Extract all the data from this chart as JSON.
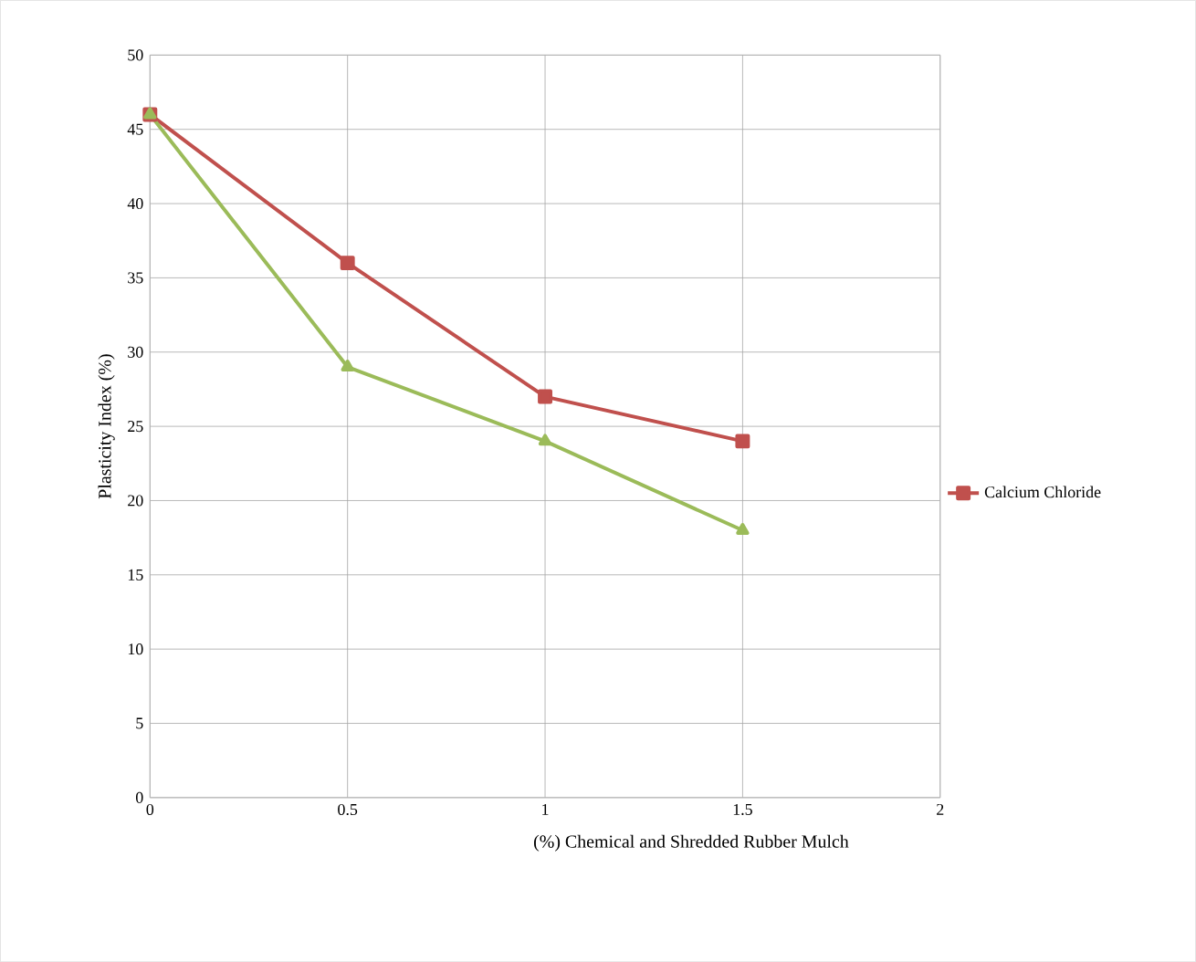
{
  "chart_data": {
    "type": "line",
    "xlabel": "(%) Chemical and Shredded Rubber Mulch",
    "ylabel": "Plasticity Index (%)",
    "x": [
      0,
      0.5,
      1,
      1.5
    ],
    "series": [
      {
        "name": "Calcium Chloride",
        "color": "#c0504d",
        "marker": "square",
        "values": [
          46,
          36,
          27,
          24
        ]
      },
      {
        "color": "#9bbb59",
        "marker": "triangle",
        "values": [
          46,
          29,
          24,
          18
        ]
      }
    ],
    "xlim": [
      0,
      2
    ],
    "xticks": [
      0,
      0.5,
      1,
      1.5,
      2
    ],
    "ylim": [
      0,
      50
    ],
    "yticks": [
      0,
      5,
      10,
      15,
      20,
      25,
      30,
      35,
      40,
      45,
      50
    ],
    "grid": true,
    "legend": "right",
    "line_style": "solid"
  }
}
